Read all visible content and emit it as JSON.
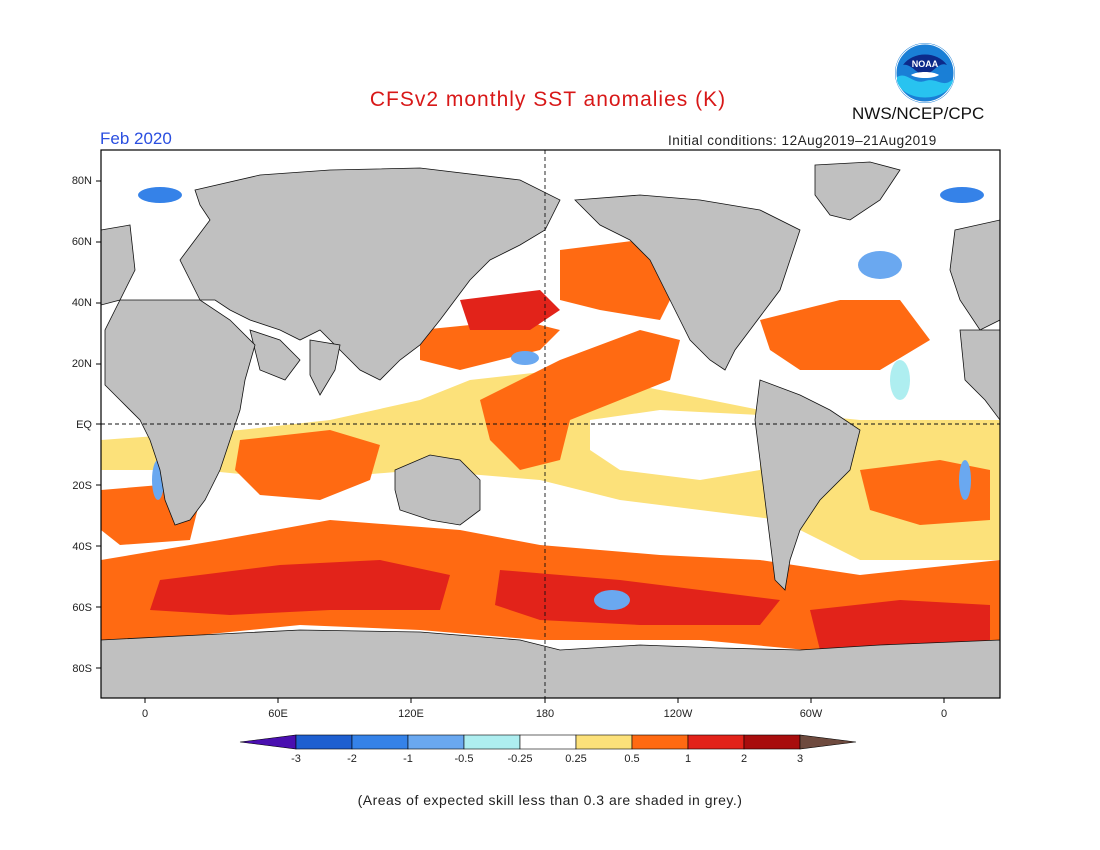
{
  "header": {
    "title": "CFSv2 monthly SST anomalies (K)",
    "period": "Feb 2020",
    "initial_conditions": "Initial conditions: 12Aug2019–21Aug2019",
    "agency": "NWS/NCEP/CPC",
    "logo_text": "NOAA"
  },
  "map": {
    "projection": "equirectangular, 20W–20E wrap",
    "lat_labels": [
      "80N",
      "60N",
      "40N",
      "20N",
      "EQ",
      "20S",
      "40S",
      "60S",
      "80S"
    ],
    "lon_labels": [
      "0",
      "60E",
      "120E",
      "180",
      "120W",
      "60W",
      "0"
    ]
  },
  "colorbar": {
    "labels": [
      "-3",
      "-2",
      "-1",
      "-0.5",
      "-0.25",
      "0.25",
      "0.5",
      "1",
      "2",
      "3"
    ],
    "colors": [
      "#4a0fb0",
      "#1e5fd0",
      "#3582e8",
      "#6aa8f0",
      "#aeeef0",
      "#ffffff",
      "#fce17a",
      "#ff6a12",
      "#e2231a",
      "#a80d0d",
      "#6e4a3e"
    ]
  },
  "caption": "(Areas of expected skill less than 0.3 are shaded in grey.)"
}
